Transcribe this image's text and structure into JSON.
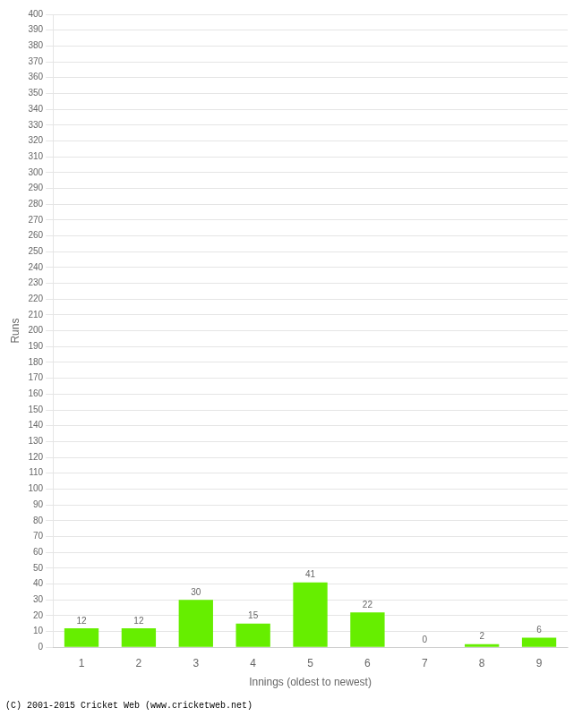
{
  "chart_data": {
    "type": "bar",
    "xlabel": "Innings (oldest to newest)",
    "ylabel": "Runs",
    "categories": [
      "1",
      "2",
      "3",
      "4",
      "5",
      "6",
      "7",
      "8",
      "9"
    ],
    "values": [
      12,
      12,
      30,
      15,
      41,
      22,
      0,
      2,
      6
    ],
    "color": "#66ee00",
    "ylim": [
      0,
      400
    ],
    "yticks": [
      0,
      10,
      20,
      30,
      40,
      50,
      60,
      70,
      80,
      90,
      100,
      110,
      120,
      130,
      140,
      150,
      160,
      170,
      180,
      190,
      200,
      210,
      220,
      230,
      240,
      250,
      260,
      270,
      280,
      290,
      300,
      310,
      320,
      330,
      340,
      350,
      360,
      370,
      380,
      390,
      400
    ],
    "grid": true,
    "data_labels": true,
    "annotations": [
      "(C) 2001-2015 Cricket Web (www.cricketweb.net)"
    ]
  }
}
